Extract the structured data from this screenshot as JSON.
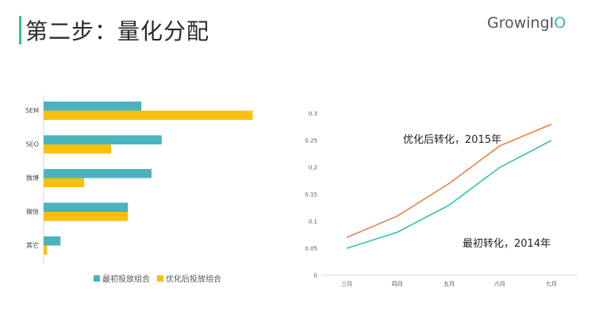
{
  "page": {
    "title": "第二步：量化分配",
    "logo_main": "GrowingI",
    "logo_accent": "O"
  },
  "colors": {
    "teal": "#4bb3be",
    "yellow": "#fbbf0f",
    "orange": "#e6834a",
    "green": "#33c2a8",
    "title_bar": "#2bbfa4"
  },
  "chart_data": [
    {
      "type": "bar",
      "orientation": "horizontal",
      "categories": [
        "SEM",
        "SEO",
        "微博",
        "微信",
        "其它"
      ],
      "series": [
        {
          "name": "最初投放组合",
          "values": [
            0.29,
            0.35,
            0.32,
            0.25,
            0.05
          ]
        },
        {
          "name": "优化后投放组合",
          "values": [
            0.62,
            0.2,
            0.12,
            0.25,
            0.01
          ]
        }
      ],
      "legend_position": "bottom",
      "grid": false
    },
    {
      "type": "line",
      "x": [
        "三月",
        "四月",
        "五月",
        "六月",
        "七月"
      ],
      "series": [
        {
          "name": "优化后转化，2015年",
          "values": [
            0.07,
            0.11,
            0.17,
            0.24,
            0.28
          ]
        },
        {
          "name": "最初转化，2014年",
          "values": [
            0.05,
            0.08,
            0.13,
            0.2,
            0.25
          ]
        }
      ],
      "yticks": [
        "0",
        "0.05",
        "0.1",
        "0.15",
        "0.2",
        "0.25",
        "0.3"
      ],
      "ylim": [
        0,
        0.3
      ],
      "grid": false
    }
  ]
}
